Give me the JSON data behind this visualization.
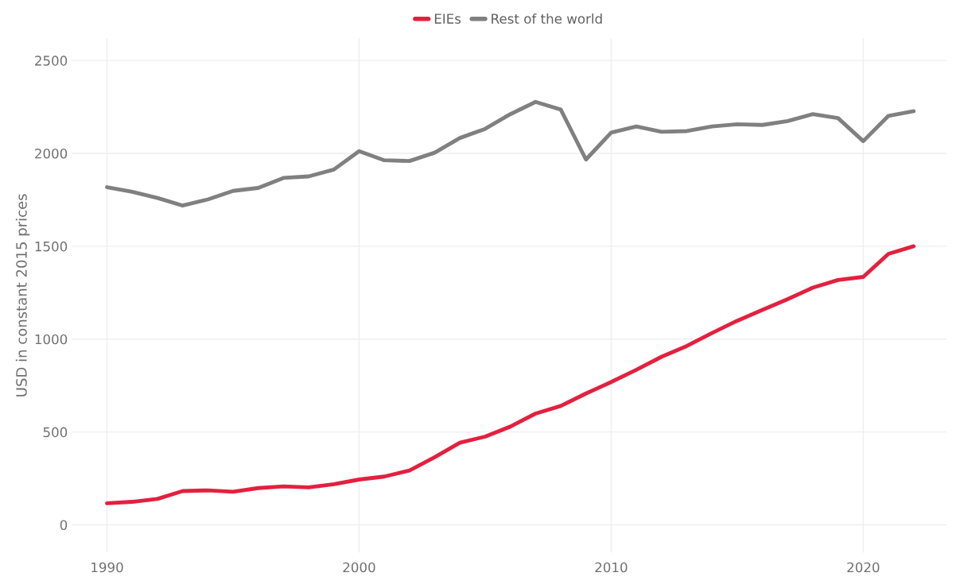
{
  "chart_data": {
    "type": "line",
    "ylabel": "USD in constant 2015 prices",
    "x": [
      1990,
      1991,
      1992,
      1993,
      1994,
      1995,
      1996,
      1997,
      1998,
      1999,
      2000,
      2001,
      2002,
      2003,
      2004,
      2005,
      2006,
      2007,
      2008,
      2009,
      2010,
      2011,
      2012,
      2013,
      2014,
      2015,
      2016,
      2017,
      2018,
      2019,
      2020,
      2021,
      2022
    ],
    "series": [
      {
        "name": "EIEs",
        "color": "#e4203f",
        "values": [
          116,
          124,
          140,
          182,
          186,
          178,
          198,
          207,
          202,
          219,
          244,
          260,
          293,
          364,
          442,
          475,
          529,
          599,
          640,
          707,
          769,
          835,
          905,
          963,
          1033,
          1099,
          1157,
          1215,
          1277,
          1318,
          1335,
          1459,
          1500
        ]
      },
      {
        "name": "Rest of the world",
        "color": "#808080",
        "values": [
          1818,
          1793,
          1760,
          1719,
          1752,
          1798,
          1814,
          1868,
          1876,
          1913,
          2012,
          1963,
          1959,
          2004,
          2083,
          2132,
          2211,
          2277,
          2236,
          1967,
          2112,
          2145,
          2116,
          2120,
          2145,
          2157,
          2153,
          2174,
          2211,
          2190,
          2066,
          2202,
          2227
        ]
      }
    ],
    "xlim": [
      1988.6,
      2023.3
    ],
    "xticks": [
      1990,
      2000,
      2010,
      2020
    ],
    "ylim": [
      -150,
      2620
    ],
    "yticks": [
      0,
      500,
      1000,
      1500,
      2000,
      2500
    ],
    "grid": true,
    "legend": "top",
    "marker": "none",
    "line_style": "solid"
  }
}
